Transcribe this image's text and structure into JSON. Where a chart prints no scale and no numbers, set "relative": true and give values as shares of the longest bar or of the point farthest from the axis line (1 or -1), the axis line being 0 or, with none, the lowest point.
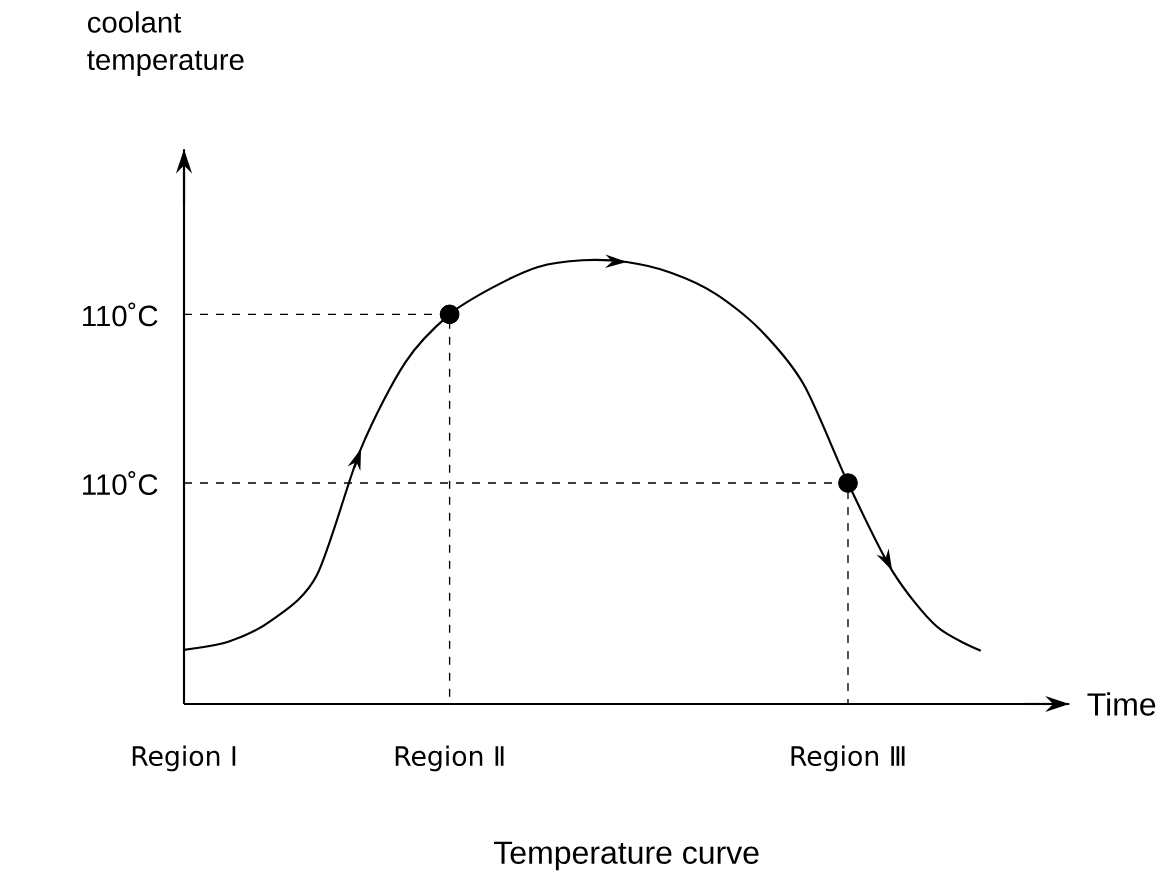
{
  "chart_data": {
    "type": "line",
    "relative": true,
    "title": "Temperature curve",
    "xlabel": "Time",
    "categories": [
      "Region Ⅰ",
      null,
      null,
      null,
      null,
      null,
      "Region Ⅱ",
      null,
      null,
      null,
      null,
      null,
      null,
      null,
      null,
      "Region Ⅲ",
      null,
      null,
      null
    ],
    "series": [
      {
        "color": "#000000",
        "values": [
          0.122,
          0.14,
          0.19,
          0.29,
          0.576,
          0.77,
          0.878,
          0.94,
          0.985,
          1.0,
          0.996,
          0.972,
          0.925,
          0.845,
          0.72,
          0.498,
          0.3,
          0.175,
          0.12
        ]
      },
      {
        "type": "scatter",
        "marker": "circle",
        "color": "#000000",
        "values": [
          null,
          null,
          null,
          null,
          null,
          null,
          0.878,
          null,
          null,
          null,
          null,
          null,
          null,
          null,
          null,
          0.498,
          null,
          null,
          null
        ]
      }
    ],
    "annotations": [
      "coolant temperature",
      "110˚C",
      "110˚C"
    ]
  }
}
